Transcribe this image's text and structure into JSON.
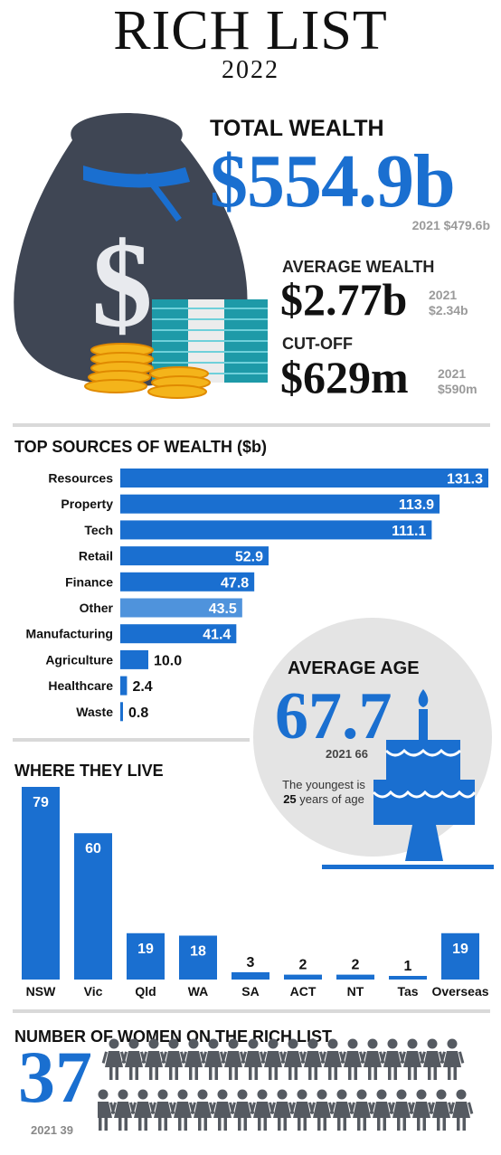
{
  "header": {
    "title": "RICH LIST",
    "year": "2022"
  },
  "total_wealth": {
    "label": "TOTAL WEALTH",
    "value": "$554.9b",
    "prev": "2021 $479.6b"
  },
  "average_wealth": {
    "label": "AVERAGE WEALTH",
    "value": "$2.77b",
    "prev_year": "2021",
    "prev_value": "$2.34b"
  },
  "cutoff": {
    "label": "CUT-OFF",
    "value": "$629m",
    "prev_year": "2021",
    "prev_value": "$590m"
  },
  "average_age": {
    "label": "AVERAGE AGE",
    "value": "67.7",
    "prev": "2021 66",
    "note_pre": "The youngest is ",
    "note_num": "25",
    "note_post": " years of age"
  },
  "women": {
    "title": "NUMBER OF WOMEN ON THE RICH LIST",
    "value": "37",
    "prev": "2021 39",
    "icon": "woman-icon"
  },
  "colors": {
    "accent": "#1a6fd0",
    "highlight": "#4f93dc",
    "bag": "#3f4654",
    "gray": "#e4e4e4"
  },
  "chart_data": [
    {
      "type": "bar",
      "orientation": "horizontal",
      "title": "TOP SOURCES OF WEALTH ($b)",
      "categories": [
        "Resources",
        "Property",
        "Tech",
        "Retail",
        "Finance",
        "Other",
        "Manufacturing",
        "Agriculture",
        "Healthcare",
        "Waste"
      ],
      "values": [
        131.3,
        113.9,
        111.1,
        52.9,
        47.8,
        43.5,
        41.4,
        10.0,
        2.4,
        0.8
      ],
      "labels": [
        "131.3",
        "113.9",
        "111.1",
        "52.9",
        "47.8",
        "43.5",
        "41.4",
        "10.0",
        "2.4",
        "0.8"
      ],
      "highlight": "Other"
    },
    {
      "type": "bar",
      "orientation": "vertical",
      "title": "WHERE THEY LIVE",
      "categories": [
        "NSW",
        "Vic",
        "Qld",
        "WA",
        "SA",
        "ACT",
        "NT",
        "Tas",
        "Overseas"
      ],
      "values": [
        79,
        60,
        19,
        18,
        3,
        2,
        2,
        1,
        19
      ]
    }
  ]
}
